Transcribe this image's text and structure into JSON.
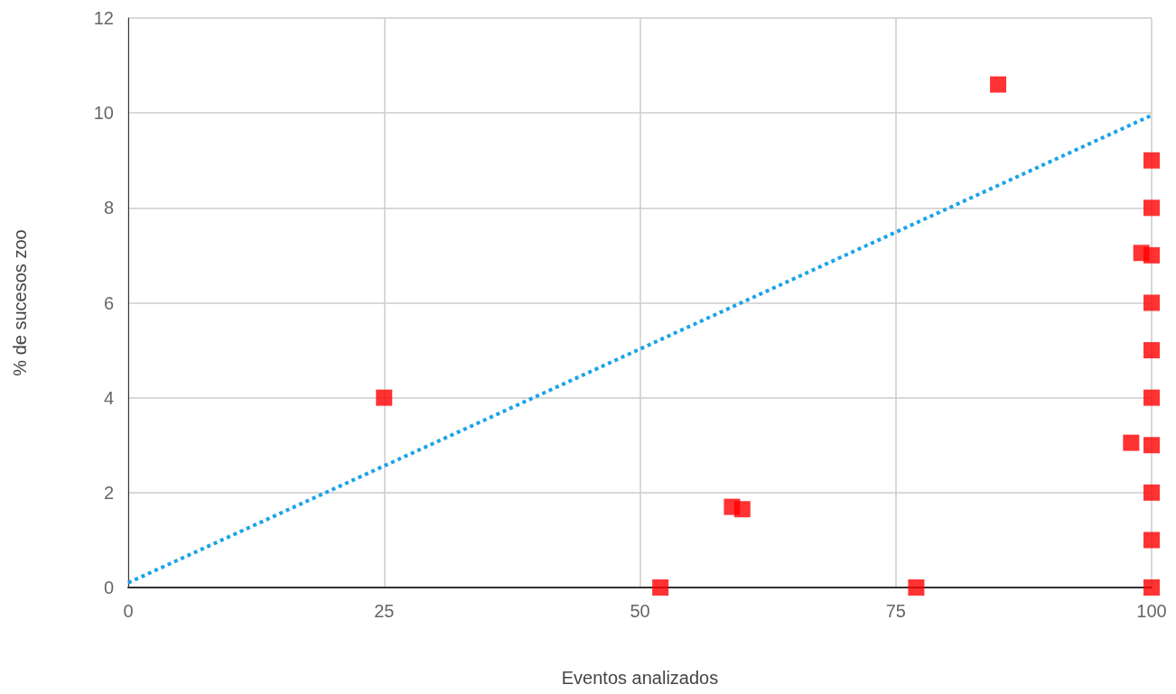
{
  "chart_data": {
    "type": "scatter",
    "xlabel": "Eventos analizados",
    "ylabel": "% de sucesos zoo",
    "xlim": [
      0,
      100
    ],
    "xticks": [
      0,
      25,
      50,
      75,
      100
    ],
    "ylim": [
      0,
      12
    ],
    "yticks": [
      0,
      2,
      4,
      6,
      8,
      10,
      12
    ],
    "grid": true,
    "marker": "square",
    "series": [
      {
        "color": "#ff0000",
        "x": [
          25,
          52,
          59,
          60,
          77,
          85,
          99,
          98,
          100,
          100,
          100,
          100,
          100,
          100,
          100,
          100,
          100,
          100
        ],
        "values": [
          4,
          0,
          1.7,
          1.65,
          0,
          10.6,
          7.05,
          3.05,
          0,
          1,
          2,
          3,
          4,
          5,
          6,
          7,
          8,
          9
        ]
      },
      {
        "type": "line",
        "color": "#1aa3e8",
        "line_style": "dotted",
        "marker": "none",
        "x": [
          0,
          100
        ],
        "values": [
          0.1,
          9.95
        ]
      }
    ]
  }
}
